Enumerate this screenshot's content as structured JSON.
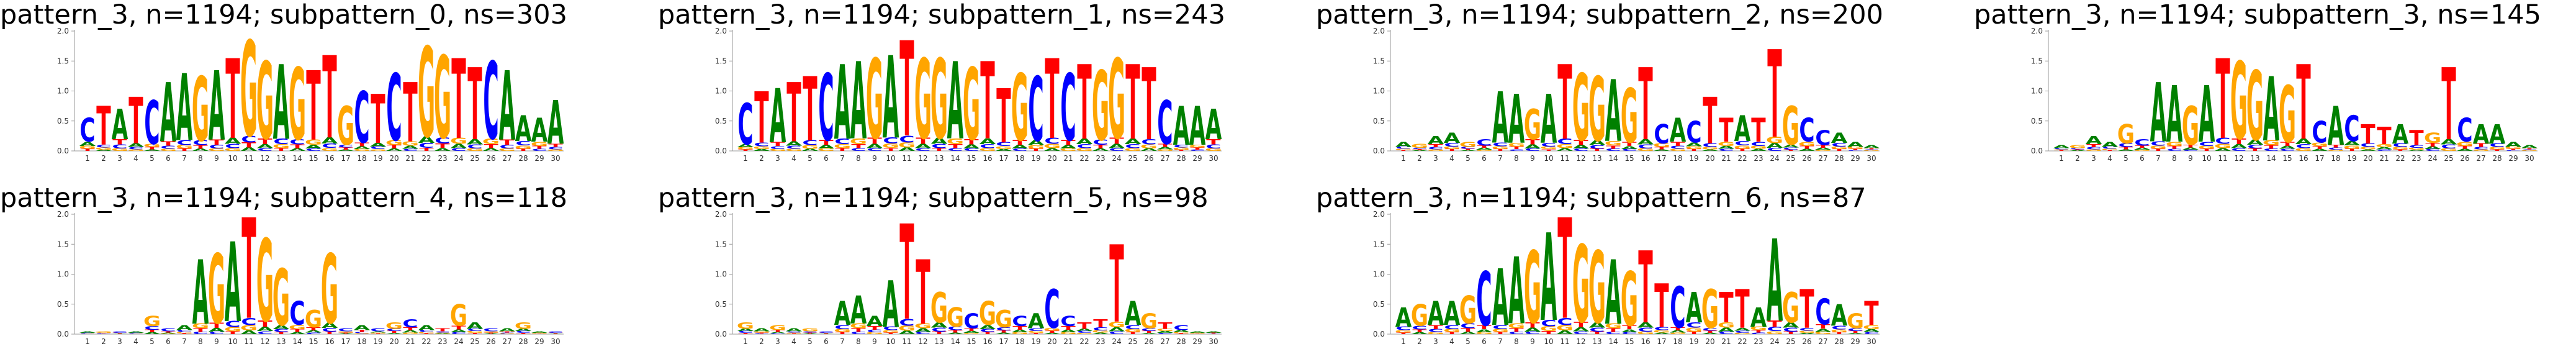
{
  "chart_data": [
    {
      "type": "sequence-logo",
      "title": "pattern_3, n=1194; subpattern_0, ns=303",
      "ylim": [
        0,
        2.0
      ],
      "yticks": [
        "0.0",
        "0.5",
        "1.0",
        "1.5",
        "2.0"
      ],
      "positions": [
        "1",
        "2",
        "3",
        "4",
        "5",
        "6",
        "7",
        "8",
        "9",
        "10",
        "11",
        "12",
        "13",
        "14",
        "15",
        "16",
        "17",
        "18",
        "19",
        "20",
        "21",
        "22",
        "23",
        "24",
        "25",
        "26",
        "27",
        "28",
        "29",
        "30"
      ],
      "top_letters": "CTATCAAGATGGAGTTGCTCTGGTTCAAAA",
      "heights": [
        0.55,
        0.75,
        0.7,
        0.9,
        0.85,
        1.15,
        1.3,
        1.25,
        1.35,
        1.55,
        1.85,
        1.5,
        1.45,
        1.4,
        1.35,
        1.6,
        0.75,
        1.0,
        0.95,
        1.3,
        1.15,
        1.75,
        1.6,
        1.55,
        1.4,
        1.5,
        1.35,
        0.6,
        0.55,
        0.85
      ]
    },
    {
      "type": "sequence-logo",
      "title": "pattern_3, n=1194; subpattern_1, ns=243",
      "ylim": [
        0,
        2.0
      ],
      "yticks": [
        "0.0",
        "0.5",
        "1.0",
        "1.5",
        "2.0"
      ],
      "positions": [
        "1",
        "2",
        "3",
        "4",
        "5",
        "6",
        "7",
        "8",
        "9",
        "10",
        "11",
        "12",
        "13",
        "14",
        "15",
        "16",
        "17",
        "18",
        "19",
        "20",
        "21",
        "22",
        "23",
        "24",
        "25",
        "26",
        "27",
        "28",
        "29",
        "30"
      ],
      "top_letters": "CTATTCAAGATGGAGTTGCTCTGGTTCAAA",
      "heights": [
        0.8,
        1.0,
        1.05,
        1.15,
        1.25,
        1.3,
        1.45,
        1.5,
        1.55,
        1.6,
        1.85,
        1.55,
        1.55,
        1.5,
        1.4,
        1.5,
        1.05,
        1.3,
        1.25,
        1.55,
        1.3,
        1.45,
        1.35,
        1.55,
        1.45,
        1.4,
        0.85,
        0.75,
        0.75,
        0.7
      ]
    },
    {
      "type": "sequence-logo",
      "title": "pattern_3, n=1194; subpattern_2, ns=200",
      "ylim": [
        0,
        2.0
      ],
      "yticks": [
        "0.0",
        "0.5",
        "1.0",
        "1.5",
        "2.0"
      ],
      "positions": [
        "1",
        "2",
        "3",
        "4",
        "5",
        "6",
        "7",
        "8",
        "9",
        "10",
        "11",
        "12",
        "13",
        "14",
        "15",
        "16",
        "17",
        "18",
        "19",
        "20",
        "21",
        "22",
        "23",
        "24",
        "25",
        "26",
        "27",
        "28",
        "29",
        "30"
      ],
      "top_letters": "AGAAGCAAGATGGAGTCACTTATTGCCAAA",
      "heights": [
        0.15,
        0.12,
        0.25,
        0.3,
        0.15,
        0.2,
        1.0,
        0.95,
        0.7,
        0.95,
        1.45,
        1.3,
        1.25,
        1.2,
        1.05,
        1.4,
        0.45,
        0.55,
        0.5,
        0.9,
        0.55,
        0.6,
        0.55,
        1.7,
        0.75,
        0.55,
        0.35,
        0.3,
        0.15,
        0.1
      ]
    },
    {
      "type": "sequence-logo",
      "title": "pattern_3, n=1194; subpattern_3, ns=145",
      "ylim": [
        0,
        2.0
      ],
      "yticks": [
        "0.0",
        "0.5",
        "1.0",
        "1.5",
        "2.0"
      ],
      "positions": [
        "1",
        "2",
        "3",
        "4",
        "5",
        "6",
        "7",
        "8",
        "9",
        "10",
        "11",
        "12",
        "13",
        "14",
        "15",
        "16",
        "17",
        "18",
        "19",
        "20",
        "21",
        "22",
        "23",
        "24",
        "25",
        "26",
        "27",
        "28",
        "29",
        "30"
      ],
      "top_letters": "AGAAGCAAGATGGAGTCACTTATGTCAAAA",
      "heights": [
        0.1,
        0.1,
        0.25,
        0.15,
        0.45,
        0.2,
        1.15,
        1.1,
        0.75,
        1.1,
        1.55,
        1.5,
        1.35,
        1.25,
        1.1,
        1.45,
        0.5,
        0.75,
        0.6,
        0.45,
        0.4,
        0.45,
        0.35,
        0.3,
        1.4,
        0.55,
        0.45,
        0.45,
        0.15,
        0.1
      ]
    },
    {
      "type": "sequence-logo",
      "title": "pattern_3, n=1194; subpattern_4, ns=118",
      "ylim": [
        0,
        2.0
      ],
      "yticks": [
        "0.0",
        "0.5",
        "1.0",
        "1.5",
        "2.0"
      ],
      "positions": [
        "1",
        "2",
        "3",
        "4",
        "5",
        "6",
        "7",
        "8",
        "9",
        "10",
        "11",
        "12",
        "13",
        "14",
        "15",
        "16",
        "17",
        "18",
        "19",
        "20",
        "21",
        "22",
        "23",
        "24",
        "25",
        "26",
        "27",
        "28",
        "29",
        "30"
      ],
      "top_letters": "AGCAGCAAGATGGCGGCACGCATGACAGAC",
      "heights": [
        0.05,
        0.05,
        0.05,
        0.05,
        0.3,
        0.1,
        0.15,
        1.25,
        1.35,
        1.55,
        1.95,
        1.6,
        1.1,
        0.55,
        0.4,
        1.35,
        0.1,
        0.15,
        0.1,
        0.2,
        0.25,
        0.15,
        0.1,
        0.5,
        0.2,
        0.1,
        0.1,
        0.2,
        0.05,
        0.05
      ]
    },
    {
      "type": "sequence-logo",
      "title": "pattern_3, n=1194; subpattern_5, ns=98",
      "ylim": [
        0,
        2.0
      ],
      "yticks": [
        "0.0",
        "0.5",
        "1.0",
        "1.5",
        "2.0"
      ],
      "positions": [
        "1",
        "2",
        "3",
        "4",
        "5",
        "6",
        "7",
        "8",
        "9",
        "10",
        "11",
        "12",
        "13",
        "14",
        "15",
        "16",
        "17",
        "18",
        "19",
        "20",
        "21",
        "22",
        "23",
        "24",
        "25",
        "26",
        "27",
        "28",
        "29",
        "30"
      ],
      "top_letters": "GAGAGCAAAATTGGCGGCACCTTTAGTCAA",
      "heights": [
        0.2,
        0.1,
        0.15,
        0.1,
        0.1,
        0.05,
        0.55,
        0.65,
        0.3,
        0.9,
        1.85,
        1.25,
        0.7,
        0.45,
        0.35,
        0.55,
        0.4,
        0.3,
        0.35,
        0.75,
        0.3,
        0.2,
        0.25,
        1.5,
        0.55,
        0.35,
        0.2,
        0.15,
        0.05,
        0.05
      ]
    },
    {
      "type": "sequence-logo",
      "title": "pattern_3, n=1194; subpattern_6, ns=87",
      "ylim": [
        0,
        2.0
      ],
      "yticks": [
        "0.0",
        "0.5",
        "1.0",
        "1.5",
        "2.0"
      ],
      "positions": [
        "1",
        "2",
        "3",
        "4",
        "5",
        "6",
        "7",
        "8",
        "9",
        "10",
        "11",
        "12",
        "13",
        "14",
        "15",
        "16",
        "17",
        "18",
        "19",
        "20",
        "21",
        "22",
        "23",
        "24",
        "25",
        "26",
        "27",
        "28",
        "29",
        "30"
      ],
      "top_letters": "AGAAGCAAGATGGAGTTCAGTTAAGTCAGT",
      "heights": [
        0.45,
        0.5,
        0.55,
        0.55,
        0.65,
        1.05,
        1.1,
        1.3,
        1.4,
        1.7,
        1.95,
        1.5,
        1.4,
        1.25,
        1.05,
        1.4,
        0.85,
        0.8,
        0.7,
        0.75,
        0.7,
        0.75,
        0.45,
        1.6,
        0.7,
        0.75,
        0.6,
        0.5,
        0.35,
        0.55
      ]
    }
  ],
  "colors": {
    "A": "#008000",
    "C": "#0000ff",
    "G": "#ffa500",
    "T": "#ff0000"
  }
}
